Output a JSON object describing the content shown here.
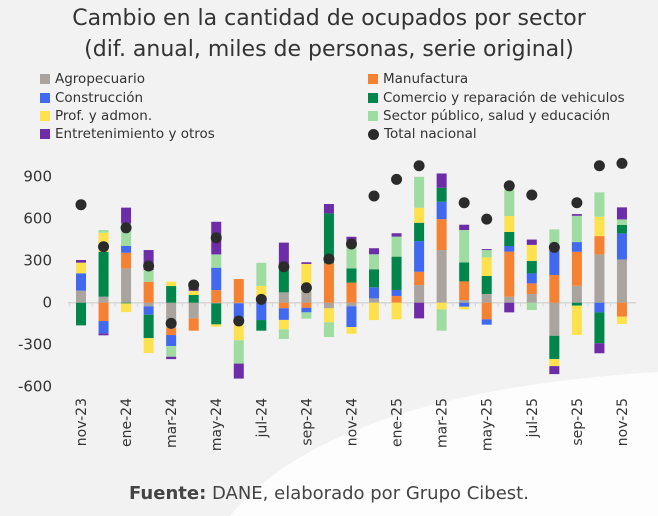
{
  "chart_data": {
    "type": "bar",
    "stacked": true,
    "title": "Cambio en la cantidad de ocupados por sector",
    "subtitle": "(dif. anual, miles de personas, serie original)",
    "ylim": [
      -600,
      900
    ],
    "yticks": [
      -600,
      -300,
      0,
      300,
      600,
      900
    ],
    "grid": false,
    "legend_position": "top",
    "categories": [
      "nov-23",
      "dic-23",
      "ene-24",
      "feb-24",
      "mar-24",
      "abr-24",
      "may-24",
      "jun-24",
      "jul-24",
      "ago-24",
      "sep-24",
      "oct-24",
      "nov-24",
      "dic-24",
      "ene-25",
      "feb-25",
      "mar-25",
      "abr-25",
      "may-25",
      "jun-25",
      "jul-25",
      "ago-25",
      "sep-25",
      "oct-25",
      "nov-25"
    ],
    "xtick_labels": [
      "nov-23",
      "ene-24",
      "mar-24",
      "may-24",
      "jul-24",
      "sep-24",
      "nov-24",
      "ene-25",
      "mar-25",
      "may-25",
      "jul-25",
      "sep-25",
      "nov-25"
    ],
    "series": [
      {
        "name": "Agropecuario",
        "color": "#a9a49e",
        "values": [
          86,
          43,
          245,
          -26,
          -183,
          -112,
          -5,
          -5,
          0,
          74,
          79,
          -40,
          -26,
          31,
          0,
          126,
          376,
          19,
          62,
          43,
          62,
          -236,
          121,
          345,
          309
        ]
      },
      {
        "name": "Manufactura",
        "color": "#f58233",
        "values": [
          0,
          -131,
          112,
          150,
          -48,
          -88,
          90,
          169,
          50,
          -40,
          -36,
          281,
          143,
          0,
          48,
          95,
          221,
          133,
          -119,
          322,
          76,
          198,
          243,
          131,
          -100
        ]
      },
      {
        "name": "Construcción",
        "color": "#4169ef",
        "values": [
          124,
          -88,
          48,
          -60,
          -79,
          0,
          160,
          -138,
          -124,
          -83,
          -33,
          0,
          -148,
          79,
          43,
          219,
          124,
          -29,
          -38,
          40,
          71,
          183,
          69,
          -69,
          186
        ]
      },
      {
        "name": "Comercio y reparación de vehiculos",
        "color": "#00854b",
        "values": [
          -162,
          321,
          -5,
          -167,
          119,
          55,
          -150,
          0,
          -76,
          160,
          0,
          357,
          102,
          129,
          238,
          131,
          100,
          136,
          129,
          100,
          90,
          -167,
          -21,
          -221,
          60
        ]
      },
      {
        "name": "Prof. y admon.",
        "color": "#fde24d",
        "values": [
          76,
          136,
          -62,
          -107,
          31,
          30,
          -17,
          -125,
          70,
          -67,
          198,
          -100,
          -48,
          -124,
          -119,
          107,
          -48,
          -19,
          133,
          114,
          114,
          -50,
          -209,
          138,
          -52
        ]
      },
      {
        "name": "Sector público, salud y educación",
        "color": "#9fdca2",
        "values": [
          0,
          19,
          160,
          83,
          -76,
          0,
          95,
          -167,
          165,
          -69,
          -45,
          -105,
          190,
          107,
          143,
          221,
          -152,
          231,
          52,
          190,
          -52,
          143,
          188,
          174,
          40
        ]
      },
      {
        "name": "Entretenimiento y otros",
        "color": "#6d2ca8",
        "values": [
          19,
          -14,
          114,
          143,
          -17,
          25,
          233,
          -107,
          0,
          195,
          12,
          67,
          36,
          43,
          24,
          -112,
          102,
          38,
          7,
          -69,
          38,
          -57,
          12,
          -71,
          86
        ]
      }
    ],
    "total": {
      "name": "Total nacional",
      "color": "#2b2b2b",
      "values": [
        700,
        400,
        535,
        262,
        -148,
        126,
        464,
        -131,
        24,
        257,
        107,
        312,
        419,
        762,
        881,
        978,
        null,
        714,
        597,
        835,
        769,
        395,
        714,
        978,
        995
      ]
    }
  },
  "source": {
    "label": "Fuente:",
    "text": " DANE, elaborado por Grupo Cibest."
  }
}
